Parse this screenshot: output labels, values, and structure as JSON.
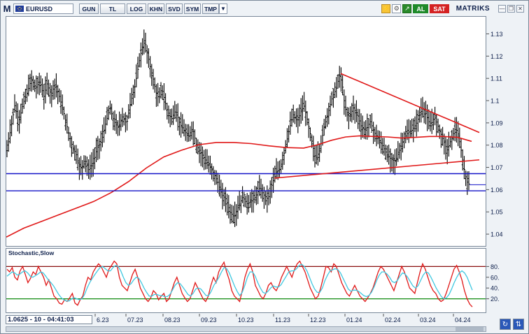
{
  "toolbar": {
    "menu_label": "M",
    "symbol": "EURUSD",
    "buttons": [
      "GUN",
      "TL",
      "LOG",
      "KHN",
      "SVD",
      "SYM",
      "TMP"
    ],
    "dropdown_icon": "chevron-down-icon",
    "status_al": "AL",
    "status_sat": "SAT",
    "brand": "MATRIKS"
  },
  "colors": {
    "price_bars": "#000000",
    "ma_line": "#e01818",
    "support_lines": "#1414c8",
    "trend_lines": "#e01818",
    "stoch_k": "#e01818",
    "stoch_d": "#40c8e0",
    "stoch_upper": "#8a1010",
    "stoch_lower": "#108a10",
    "al_badge": "#1f8a2a",
    "sat_badge": "#d42222"
  },
  "status": {
    "readout": "1.0625 - 10 - 04:41:03"
  },
  "chart_data": [
    {
      "type": "ohlc",
      "symbol": "EURUSD",
      "x_tick_labels": [
        "6.23",
        "07.23",
        "08.23",
        "09.23",
        "10.23",
        "11.23",
        "12.23",
        "01.24",
        "02.24",
        "03.24",
        "04.24"
      ],
      "y_tick_labels": [
        "1.13",
        "1.12",
        "1.11",
        "1.1",
        "1.09",
        "1.08",
        "1.07",
        "1.06",
        "1.05",
        "1.04"
      ],
      "ylim": [
        1.035,
        1.138
      ],
      "price_path": [
        [
          0,
          1.076
        ],
        [
          6,
          1.087
        ],
        [
          12,
          1.098
        ],
        [
          18,
          1.091
        ],
        [
          24,
          1.099
        ],
        [
          30,
          1.104
        ],
        [
          36,
          1.11
        ],
        [
          42,
          1.106
        ],
        [
          48,
          1.109
        ],
        [
          54,
          1.102
        ],
        [
          58,
          1.108
        ],
        [
          64,
          1.103
        ],
        [
          70,
          1.108
        ],
        [
          76,
          1.102
        ],
        [
          82,
          1.095
        ],
        [
          88,
          1.087
        ],
        [
          94,
          1.08
        ],
        [
          100,
          1.076
        ],
        [
          104,
          1.071
        ],
        [
          108,
          1.07
        ],
        [
          112,
          1.074
        ],
        [
          118,
          1.069
        ],
        [
          124,
          1.072
        ],
        [
          130,
          1.079
        ],
        [
          136,
          1.082
        ],
        [
          142,
          1.09
        ],
        [
          148,
          1.097
        ],
        [
          154,
          1.091
        ],
        [
          160,
          1.088
        ],
        [
          166,
          1.093
        ],
        [
          172,
          1.09
        ],
        [
          178,
          1.1
        ],
        [
          184,
          1.107
        ],
        [
          190,
          1.118
        ],
        [
          194,
          1.124
        ],
        [
          198,
          1.127
        ],
        [
          202,
          1.121
        ],
        [
          206,
          1.115
        ],
        [
          210,
          1.11
        ],
        [
          214,
          1.104
        ],
        [
          218,
          1.101
        ],
        [
          222,
          1.106
        ],
        [
          226,
          1.101
        ],
        [
          230,
          1.096
        ],
        [
          236,
          1.092
        ],
        [
          242,
          1.096
        ],
        [
          248,
          1.09
        ],
        [
          254,
          1.087
        ],
        [
          260,
          1.084
        ],
        [
          266,
          1.088
        ],
        [
          272,
          1.08
        ],
        [
          278,
          1.077
        ],
        [
          284,
          1.074
        ],
        [
          290,
          1.071
        ],
        [
          296,
          1.068
        ],
        [
          302,
          1.064
        ],
        [
          308,
          1.058
        ],
        [
          314,
          1.056
        ],
        [
          320,
          1.05
        ],
        [
          326,
          1.048
        ],
        [
          332,
          1.053
        ],
        [
          338,
          1.057
        ],
        [
          344,
          1.054
        ],
        [
          350,
          1.055
        ],
        [
          356,
          1.057
        ],
        [
          362,
          1.061
        ],
        [
          368,
          1.058
        ],
        [
          374,
          1.056
        ],
        [
          380,
          1.063
        ],
        [
          386,
          1.068
        ],
        [
          392,
          1.07
        ],
        [
          398,
          1.078
        ],
        [
          404,
          1.087
        ],
        [
          410,
          1.094
        ],
        [
          416,
          1.091
        ],
        [
          422,
          1.096
        ],
        [
          426,
          1.098
        ],
        [
          430,
          1.092
        ],
        [
          436,
          1.083
        ],
        [
          442,
          1.074
        ],
        [
          448,
          1.078
        ],
        [
          454,
          1.088
        ],
        [
          460,
          1.095
        ],
        [
          466,
          1.102
        ],
        [
          472,
          1.106
        ],
        [
          476,
          1.112
        ],
        [
          480,
          1.108
        ],
        [
          484,
          1.097
        ],
        [
          490,
          1.093
        ],
        [
          496,
          1.097
        ],
        [
          502,
          1.094
        ],
        [
          508,
          1.088
        ],
        [
          514,
          1.087
        ],
        [
          520,
          1.091
        ],
        [
          526,
          1.086
        ],
        [
          532,
          1.083
        ],
        [
          538,
          1.08
        ],
        [
          544,
          1.076
        ],
        [
          550,
          1.074
        ],
        [
          556,
          1.073
        ],
        [
          562,
          1.078
        ],
        [
          568,
          1.083
        ],
        [
          574,
          1.086
        ],
        [
          580,
          1.087
        ],
        [
          586,
          1.09
        ],
        [
          592,
          1.095
        ],
        [
          596,
          1.097
        ],
        [
          600,
          1.094
        ],
        [
          606,
          1.089
        ],
        [
          612,
          1.093
        ],
        [
          618,
          1.088
        ],
        [
          624,
          1.083
        ],
        [
          630,
          1.078
        ],
        [
          636,
          1.083
        ],
        [
          642,
          1.088
        ],
        [
          646,
          1.085
        ],
        [
          650,
          1.078
        ],
        [
          654,
          1.07
        ],
        [
          658,
          1.064
        ],
        [
          662,
          1.0625
        ]
      ],
      "ma_line": [
        [
          0,
          1.039
        ],
        [
          25,
          1.043
        ],
        [
          50,
          1.046
        ],
        [
          75,
          1.049
        ],
        [
          100,
          1.052
        ],
        [
          125,
          1.055
        ],
        [
          150,
          1.059
        ],
        [
          175,
          1.064
        ],
        [
          200,
          1.07
        ],
        [
          225,
          1.075
        ],
        [
          250,
          1.078
        ],
        [
          275,
          1.0805
        ],
        [
          300,
          1.0815
        ],
        [
          325,
          1.0815
        ],
        [
          350,
          1.081
        ],
        [
          375,
          1.08
        ],
        [
          400,
          1.0792
        ],
        [
          425,
          1.079
        ],
        [
          445,
          1.0805
        ],
        [
          465,
          1.0825
        ],
        [
          485,
          1.084
        ],
        [
          505,
          1.0845
        ],
        [
          525,
          1.0842
        ],
        [
          545,
          1.084
        ],
        [
          565,
          1.0835
        ],
        [
          585,
          1.0838
        ],
        [
          605,
          1.0842
        ],
        [
          625,
          1.0842
        ],
        [
          645,
          1.0838
        ],
        [
          665,
          1.082
        ]
      ],
      "horizontal_lines": [
        1.0675,
        1.0598
      ],
      "trend_lines": [
        {
          "from": [
            478,
            1.1125
          ],
          "to": [
            676,
            1.086
          ]
        },
        {
          "from": [
            383,
            1.0655
          ],
          "to": [
            676,
            1.0737
          ]
        }
      ],
      "last_price_marker": 1.0625
    },
    {
      "type": "line",
      "title": "Stochastic,Slow",
      "y_tick_labels": [
        "80.",
        "60.",
        "40.",
        "20."
      ],
      "ylim": [
        0,
        100
      ],
      "reference_lines": [
        80,
        20
      ],
      "series": [
        {
          "values": [
            75,
            70,
            78,
            60,
            55,
            72,
            80,
            65,
            50,
            58,
            70,
            65,
            80,
            70,
            60,
            45,
            55,
            40,
            25,
            20,
            12,
            10,
            18,
            15,
            22,
            30,
            12,
            8,
            18,
            25,
            45,
            60,
            55,
            70,
            78,
            85,
            80,
            70,
            60,
            75,
            82,
            90,
            85,
            60,
            45,
            40,
            35,
            50,
            65,
            75,
            60,
            40,
            30,
            20,
            15,
            22,
            35,
            30,
            18,
            25,
            30,
            15,
            20,
            35,
            50,
            60,
            45,
            30,
            22,
            15,
            20,
            35,
            50,
            40,
            30,
            20,
            15,
            25,
            45,
            60,
            50,
            70,
            80,
            88,
            70,
            55,
            35,
            25,
            20,
            15,
            35,
            60,
            75,
            85,
            70,
            45,
            35,
            25,
            20,
            30,
            45,
            50,
            40,
            35,
            45,
            60,
            70,
            80,
            70,
            60,
            75,
            85,
            90,
            80,
            70,
            55,
            40,
            30,
            20,
            25,
            40,
            60,
            80,
            78,
            70,
            85,
            80,
            65,
            50,
            40,
            30,
            25,
            35,
            45,
            35,
            25,
            20,
            15,
            22,
            30,
            40,
            55,
            70,
            80,
            75,
            65,
            55,
            45,
            35,
            50,
            65,
            80,
            70,
            55,
            40,
            35,
            30,
            50,
            70,
            85,
            75,
            60,
            45,
            35,
            30,
            20,
            15,
            18,
            30,
            45,
            60,
            75,
            82,
            70,
            55,
            35,
            20,
            10,
            5
          ]
        },
        {
          "values": [
            62,
            66,
            70,
            68,
            64,
            66,
            70,
            72,
            68,
            62,
            60,
            63,
            66,
            70,
            68,
            62,
            55,
            50,
            44,
            36,
            28,
            22,
            18,
            16,
            16,
            20,
            22,
            20,
            18,
            20,
            28,
            40,
            50,
            58,
            65,
            72,
            78,
            80,
            76,
            72,
            72,
            78,
            82,
            80,
            72,
            60,
            50,
            45,
            48,
            55,
            60,
            58,
            50,
            40,
            32,
            25,
            25,
            28,
            28,
            26,
            26,
            24,
            24,
            28,
            36,
            45,
            50,
            48,
            42,
            35,
            28,
            25,
            30,
            38,
            40,
            38,
            32,
            26,
            26,
            34,
            45,
            52,
            60,
            70,
            78,
            76,
            68,
            56,
            44,
            34,
            26,
            32,
            45,
            60,
            70,
            70,
            62,
            50,
            40,
            32,
            30,
            34,
            40,
            44,
            42,
            42,
            46,
            54,
            62,
            70,
            72,
            72,
            76,
            82,
            84,
            80,
            72,
            60,
            48,
            38,
            32,
            32,
            40,
            54,
            64,
            72,
            74,
            76,
            74,
            68,
            58,
            48,
            38,
            34,
            36,
            36,
            34,
            30,
            26,
            24,
            26,
            32,
            42,
            54,
            64,
            70,
            70,
            66,
            60,
            52,
            50,
            54,
            62,
            68,
            66,
            60,
            52,
            44,
            40,
            44,
            54,
            64,
            70,
            68,
            60,
            50,
            40,
            32,
            24,
            20,
            22,
            28,
            38,
            50,
            60,
            68,
            72,
            68,
            60,
            48,
            36
          ]
        }
      ]
    }
  ]
}
